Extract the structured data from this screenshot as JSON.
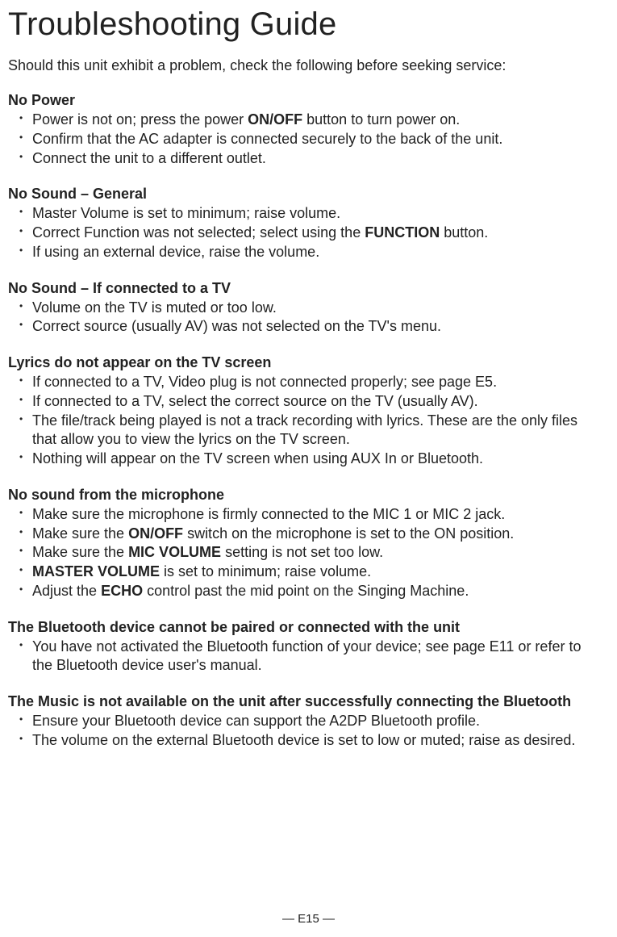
{
  "title": "Troubleshooting Guide",
  "intro": "Should this unit exhibit a problem, check the following before seeking service:",
  "sections": [
    {
      "heading": "No Power",
      "items": [
        [
          {
            "t": "Power is not on; press the power "
          },
          {
            "t": "ON/OFF",
            "b": true
          },
          {
            "t": " button to turn power on."
          }
        ],
        [
          {
            "t": "Confirm that the AC adapter is connected securely to the back of the unit."
          }
        ],
        [
          {
            "t": "Connect the unit to a different outlet."
          }
        ]
      ]
    },
    {
      "heading": "No Sound – General",
      "items": [
        [
          {
            "t": "Master Volume is set to minimum; raise volume."
          }
        ],
        [
          {
            "t": "Correct Function was not selected; select using the "
          },
          {
            "t": "FUNCTION",
            "b": true
          },
          {
            "t": " button."
          }
        ],
        [
          {
            "t": "If using an external device, raise the volume."
          }
        ]
      ]
    },
    {
      "heading": "No Sound – If connected to a TV",
      "items": [
        [
          {
            "t": "Volume on the TV is muted or too low."
          }
        ],
        [
          {
            "t": "Correct source (usually AV) was not selected on the TV's menu."
          }
        ]
      ]
    },
    {
      "heading": "Lyrics do not appear on the TV screen",
      "items": [
        [
          {
            "t": "If connected to a TV, Video plug is not connected properly; see page E5."
          }
        ],
        [
          {
            "t": "If connected to a TV, select the correct source on the TV (usually AV)."
          }
        ],
        [
          {
            "t": "The file/track being played is not a track recording with lyrics. These are the only files that allow you to view the lyrics on the TV screen."
          }
        ],
        [
          {
            "t": "Nothing will appear on the TV screen when using AUX In or Bluetooth."
          }
        ]
      ]
    },
    {
      "heading": "No sound from the microphone",
      "items": [
        [
          {
            "t": "Make sure the microphone is firmly connected to the MIC 1 or MIC 2 jack."
          }
        ],
        [
          {
            "t": "Make sure the "
          },
          {
            "t": "ON/OFF",
            "b": true
          },
          {
            "t": " switch on the microphone is set to the ON position."
          }
        ],
        [
          {
            "t": "Make sure the "
          },
          {
            "t": "MIC VOLUME",
            "b": true
          },
          {
            "t": " setting is not set too low."
          }
        ],
        [
          {
            "t": "MASTER VOLUME",
            "b": true
          },
          {
            "t": " is set to minimum; raise volume."
          }
        ],
        [
          {
            "t": "Adjust the "
          },
          {
            "t": "ECHO",
            "b": true
          },
          {
            "t": " control past the mid point on the Singing Machine."
          }
        ]
      ]
    },
    {
      "heading": "The Bluetooth device cannot be paired or connected with the unit",
      "items": [
        [
          {
            "t": "You have not activated the Bluetooth function of your device; see page E11 or refer to the Bluetooth device user's manual."
          }
        ]
      ]
    },
    {
      "heading": "The Music is not available on the unit after successfully connecting the Bluetooth",
      "items": [
        [
          {
            "t": "Ensure your Bluetooth device can support the A2DP Bluetooth profile."
          }
        ],
        [
          {
            "t": "The volume on the external Bluetooth device is set to low or muted; raise as desired."
          }
        ]
      ]
    }
  ],
  "footer": "— E15 —"
}
